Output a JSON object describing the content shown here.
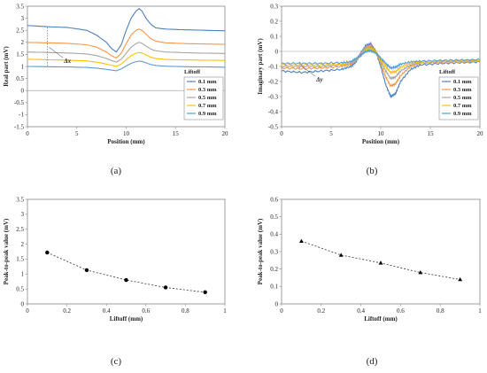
{
  "panels": [
    {
      "caption": "(a)",
      "chart_data": {
        "type": "line",
        "title": "",
        "xlabel": "Position (mm)",
        "ylabel": "Real part (mV)",
        "xlim": [
          0,
          20
        ],
        "ylim": [
          -1.5,
          3.5
        ],
        "xticks": [
          "0",
          "5",
          "10",
          "15",
          "20"
        ],
        "yticks": [
          "-1.5",
          "-1",
          "-0.5",
          "0",
          "0.5",
          "1",
          "1.5",
          "2",
          "2.5",
          "3",
          "3.5"
        ],
        "grid": false,
        "legend": {
          "title": "Liftoff",
          "position": "bottom-right"
        },
        "annotation": "Δx",
        "series": [
          {
            "name": "0.1 mm",
            "color": "#4f81bd",
            "x": [
              0,
              2,
              4,
              6,
              7,
              8,
              8.5,
              9,
              9.5,
              10,
              10.5,
              11,
              11.3,
              11.6,
              12,
              12.5,
              13,
              14,
              16,
              18,
              20
            ],
            "y": [
              2.7,
              2.65,
              2.62,
              2.5,
              2.3,
              2.0,
              1.75,
              1.6,
              1.9,
              2.5,
              3.0,
              3.3,
              3.4,
              3.3,
              3.0,
              2.75,
              2.6,
              2.55,
              2.52,
              2.5,
              2.48
            ]
          },
          {
            "name": "0.3 mm",
            "color": "#f79646",
            "x": [
              0,
              2,
              4,
              6,
              7,
              8,
              8.5,
              9,
              9.5,
              10,
              10.5,
              11,
              11.3,
              11.6,
              12,
              12.5,
              13,
              14,
              16,
              18,
              20
            ],
            "y": [
              2.0,
              1.98,
              1.96,
              1.9,
              1.8,
              1.6,
              1.45,
              1.35,
              1.55,
              1.95,
              2.3,
              2.5,
              2.55,
              2.5,
              2.35,
              2.15,
              2.05,
              1.98,
              1.95,
              1.93,
              1.92
            ]
          },
          {
            "name": "0.5 mm",
            "color": "#a5a5a5",
            "x": [
              0,
              2,
              4,
              6,
              7,
              8,
              8.5,
              9,
              9.5,
              10,
              10.5,
              11,
              11.3,
              11.6,
              12,
              12.5,
              13,
              14,
              16,
              18,
              20
            ],
            "y": [
              1.6,
              1.58,
              1.56,
              1.52,
              1.45,
              1.33,
              1.25,
              1.18,
              1.3,
              1.55,
              1.8,
              1.95,
              2.0,
              1.96,
              1.85,
              1.72,
              1.65,
              1.6,
              1.57,
              1.55,
              1.54
            ]
          },
          {
            "name": "0.7 mm",
            "color": "#ffc000",
            "x": [
              0,
              2,
              4,
              6,
              7,
              8,
              8.5,
              9,
              9.5,
              10,
              10.5,
              11,
              11.3,
              11.6,
              12,
              12.5,
              13,
              14,
              16,
              18,
              20
            ],
            "y": [
              1.3,
              1.28,
              1.26,
              1.23,
              1.18,
              1.1,
              1.05,
              1.0,
              1.1,
              1.28,
              1.45,
              1.55,
              1.58,
              1.56,
              1.48,
              1.38,
              1.33,
              1.29,
              1.27,
              1.26,
              1.25
            ]
          },
          {
            "name": "0.9 mm",
            "color": "#5b9bd5",
            "x": [
              0,
              2,
              4,
              6,
              7,
              8,
              8.5,
              9,
              9.5,
              10,
              10.5,
              11,
              11.3,
              11.6,
              12,
              12.5,
              13,
              14,
              16,
              18,
              20
            ],
            "y": [
              1.0,
              0.99,
              0.98,
              0.96,
              0.93,
              0.88,
              0.85,
              0.82,
              0.9,
              1.02,
              1.13,
              1.2,
              1.22,
              1.21,
              1.15,
              1.08,
              1.04,
              1.01,
              0.99,
              0.98,
              0.97
            ]
          }
        ]
      }
    },
    {
      "caption": "(b)",
      "chart_data": {
        "type": "line",
        "title": "",
        "xlabel": "Position (mm)",
        "ylabel": "Imaginary part (mV)",
        "xlim": [
          0,
          20
        ],
        "ylim": [
          -0.5,
          0.3
        ],
        "xticks": [
          "0",
          "5",
          "10",
          "15",
          "20"
        ],
        "yticks": [
          "-0.5",
          "-0.4",
          "-0.3",
          "-0.2",
          "-0.1",
          "0",
          "0.1",
          "0.2",
          "0.3"
        ],
        "grid": false,
        "legend": {
          "title": "Liftoff",
          "position": "bottom-right"
        },
        "annotation": "Δy",
        "series": [
          {
            "name": "0.1 mm",
            "color": "#4f81bd",
            "x": [
              0,
              2,
              4,
              6,
              7,
              7.5,
              8,
              8.5,
              9,
              9.5,
              10,
              10.5,
              11,
              11.5,
              12,
              13,
              14,
              16,
              18,
              20
            ],
            "y": [
              -0.13,
              -0.14,
              -0.13,
              -0.12,
              -0.1,
              -0.07,
              -0.01,
              0.04,
              0.05,
              0.0,
              -0.1,
              -0.22,
              -0.3,
              -0.28,
              -0.2,
              -0.12,
              -0.09,
              -0.08,
              -0.075,
              -0.07
            ]
          },
          {
            "name": "0.3 mm",
            "color": "#f79646",
            "x": [
              0,
              2,
              4,
              6,
              7,
              7.5,
              8,
              8.5,
              9,
              9.5,
              10,
              10.5,
              11,
              11.5,
              12,
              13,
              14,
              16,
              18,
              20
            ],
            "y": [
              -0.11,
              -0.115,
              -0.11,
              -0.1,
              -0.085,
              -0.06,
              -0.015,
              0.03,
              0.035,
              0.0,
              -0.08,
              -0.17,
              -0.23,
              -0.215,
              -0.16,
              -0.1,
              -0.08,
              -0.07,
              -0.07,
              -0.065
            ]
          },
          {
            "name": "0.5 mm",
            "color": "#a5a5a5",
            "x": [
              0,
              2,
              4,
              6,
              7,
              7.5,
              8,
              8.5,
              9,
              9.5,
              10,
              10.5,
              11,
              11.5,
              12,
              13,
              14,
              16,
              18,
              20
            ],
            "y": [
              -0.1,
              -0.1,
              -0.1,
              -0.09,
              -0.078,
              -0.055,
              -0.02,
              0.02,
              0.025,
              0.0,
              -0.065,
              -0.13,
              -0.18,
              -0.17,
              -0.13,
              -0.09,
              -0.075,
              -0.07,
              -0.065,
              -0.06
            ]
          },
          {
            "name": "0.7 mm",
            "color": "#ffc000",
            "x": [
              0,
              2,
              4,
              6,
              7,
              7.5,
              8,
              8.5,
              9,
              9.5,
              10,
              10.5,
              11,
              11.5,
              12,
              13,
              14,
              16,
              18,
              20
            ],
            "y": [
              -0.09,
              -0.09,
              -0.09,
              -0.085,
              -0.075,
              -0.055,
              -0.025,
              0.01,
              0.015,
              -0.005,
              -0.055,
              -0.1,
              -0.14,
              -0.135,
              -0.105,
              -0.08,
              -0.07,
              -0.065,
              -0.06,
              -0.06
            ]
          },
          {
            "name": "0.9 mm",
            "color": "#5b9bd5",
            "x": [
              0,
              2,
              4,
              6,
              7,
              7.5,
              8,
              8.5,
              9,
              9.5,
              10,
              10.5,
              11,
              11.5,
              12,
              13,
              14,
              16,
              18,
              20
            ],
            "y": [
              -0.08,
              -0.08,
              -0.08,
              -0.075,
              -0.068,
              -0.05,
              -0.025,
              0.0,
              0.005,
              -0.01,
              -0.045,
              -0.08,
              -0.11,
              -0.105,
              -0.085,
              -0.07,
              -0.065,
              -0.06,
              -0.058,
              -0.055
            ]
          }
        ]
      }
    },
    {
      "caption": "(c)",
      "chart_data": {
        "type": "scatter",
        "title": "",
        "xlabel": "Liftoff (mm)",
        "ylabel": "Peak-to-peak value (mV)",
        "xlim": [
          0,
          1
        ],
        "ylim": [
          0,
          3.5
        ],
        "xticks": [
          "0",
          "0.2",
          "0.4",
          "0.6",
          "0.8",
          "1"
        ],
        "yticks": [
          "0",
          "0.5",
          "1",
          "1.5",
          "2",
          "2.5",
          "3",
          "3.5"
        ],
        "grid": false,
        "marker": "circle",
        "trendline": "dashed",
        "x": [
          0.1,
          0.3,
          0.5,
          0.7,
          0.9
        ],
        "y": [
          1.72,
          1.13,
          0.8,
          0.55,
          0.39
        ]
      }
    },
    {
      "caption": "(d)",
      "chart_data": {
        "type": "scatter",
        "title": "",
        "xlabel": "Liftoff (mm)",
        "ylabel": "Peak-to-peak value (mV)",
        "xlim": [
          0,
          1
        ],
        "ylim": [
          0,
          0.6
        ],
        "xticks": [
          "0",
          "0.2",
          "0.4",
          "0.6",
          "0.8",
          "1"
        ],
        "yticks": [
          "0",
          "0.1",
          "0.2",
          "0.3",
          "0.4",
          "0.5",
          "0.6"
        ],
        "grid": false,
        "marker": "triangle",
        "trendline": "dashed",
        "x": [
          0.1,
          0.3,
          0.5,
          0.7,
          0.9
        ],
        "y": [
          0.36,
          0.28,
          0.235,
          0.18,
          0.14
        ]
      }
    }
  ]
}
